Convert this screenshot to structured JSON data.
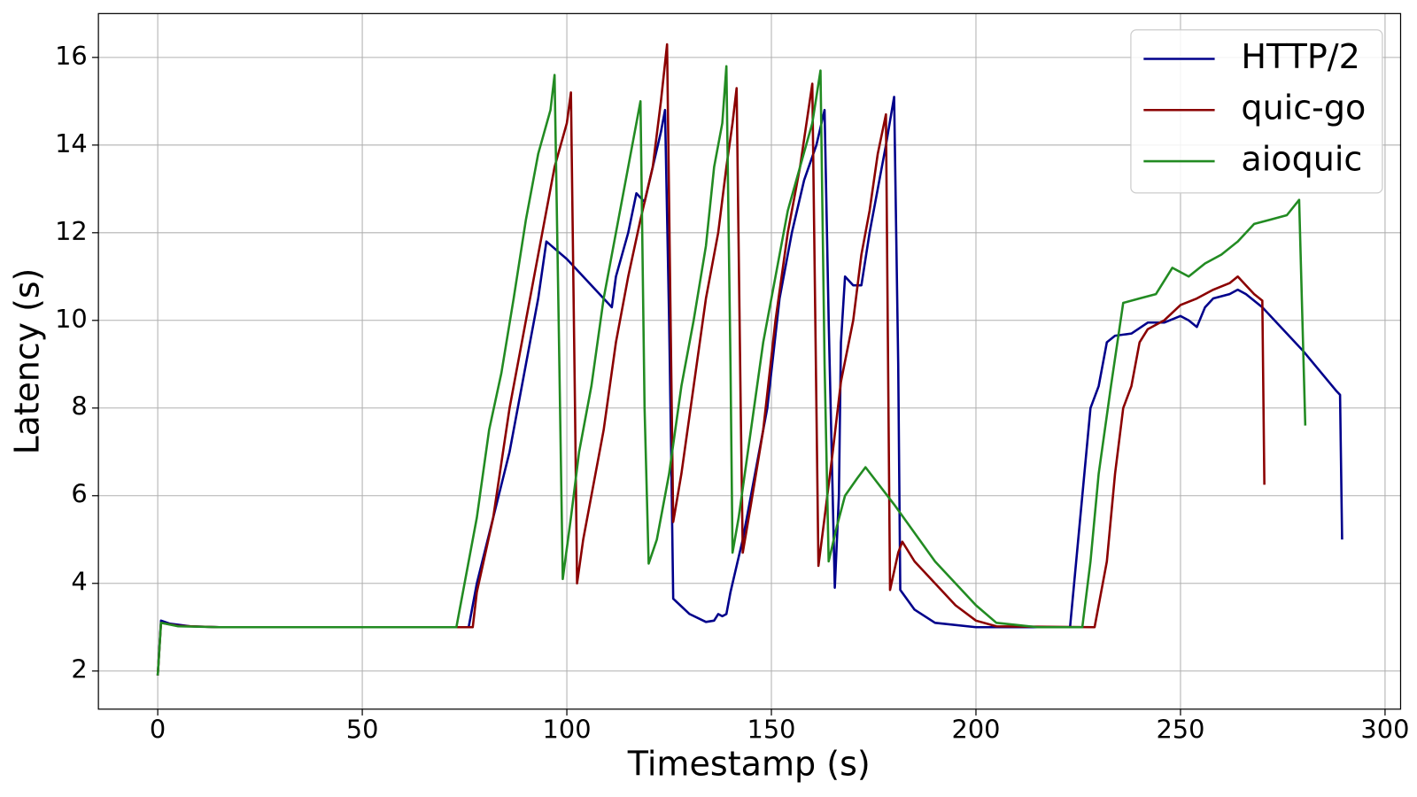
{
  "chart_data": {
    "type": "line",
    "xlabel": "Timestamp (s)",
    "ylabel": "Latency (s)",
    "xlim": [
      -14.5,
      303.8
    ],
    "ylim": [
      1.13,
      17.0
    ],
    "xticks": [
      0,
      50,
      100,
      150,
      200,
      250,
      300
    ],
    "yticks": [
      2,
      4,
      6,
      8,
      10,
      12,
      14,
      16
    ],
    "grid": true,
    "legend": "upper right",
    "series": [
      {
        "name": "HTTP/2",
        "color": "#00008b",
        "x": [
          0,
          0.8,
          3,
          8,
          15,
          50,
          76,
          78,
          82,
          86,
          90,
          93,
          95,
          100,
          105,
          111,
          112,
          115,
          117,
          119,
          121,
          123,
          124,
          125,
          125.5,
          126,
          130,
          134,
          136,
          137,
          138,
          139,
          140,
          143,
          146,
          149,
          152,
          155,
          158,
          161,
          163,
          164,
          165.5,
          166.5,
          167,
          168,
          170,
          172,
          174,
          176,
          178,
          180,
          181,
          181.5,
          185,
          190,
          200,
          223,
          224,
          226,
          228,
          230,
          232,
          234,
          238,
          242,
          246,
          250,
          252,
          254,
          256,
          258,
          262,
          264,
          266,
          270,
          280,
          288,
          289,
          289.5
        ],
        "values": [
          1.9,
          3.15,
          3.08,
          3.02,
          3.0,
          3.0,
          3.0,
          4.0,
          5.5,
          7.0,
          9.0,
          10.5,
          11.8,
          11.4,
          10.9,
          10.3,
          11.0,
          12.0,
          12.9,
          12.7,
          13.5,
          14.3,
          14.8,
          10.0,
          7.0,
          3.65,
          3.3,
          3.12,
          3.15,
          3.3,
          3.25,
          3.3,
          3.8,
          5.0,
          6.5,
          8.0,
          10.5,
          12.0,
          13.2,
          14.0,
          14.8,
          10.0,
          3.9,
          6.0,
          9.5,
          11.0,
          10.8,
          10.8,
          12.0,
          13.0,
          14.0,
          15.1,
          9.0,
          3.85,
          3.4,
          3.1,
          3.0,
          3.0,
          4.0,
          6.0,
          8.0,
          8.5,
          9.5,
          9.65,
          9.7,
          9.95,
          9.95,
          10.1,
          10.0,
          9.85,
          10.3,
          10.5,
          10.6,
          10.7,
          10.6,
          10.3,
          9.3,
          8.4,
          8.3,
          5.0
        ]
      },
      {
        "name": "quic-go",
        "color": "#8b0000",
        "x": [
          0,
          0.8,
          5,
          15,
          77,
          78,
          82,
          86,
          90,
          94,
          97,
          100,
          101,
          102,
          102.5,
          104,
          106,
          109,
          112,
          115,
          118,
          121,
          123,
          124.5,
          125.5,
          126,
          128,
          131,
          134,
          137,
          139,
          140.5,
          141.5,
          142.5,
          143,
          145,
          148,
          151,
          154,
          157,
          160,
          161.5,
          163,
          165,
          167,
          170,
          172,
          174,
          176,
          178,
          179,
          181,
          182,
          185,
          190,
          195,
          200,
          205,
          229,
          230,
          232,
          234,
          236,
          238,
          240,
          242,
          246,
          250,
          254,
          258,
          262,
          264,
          266,
          268,
          270,
          270.5
        ],
        "values": [
          1.9,
          3.1,
          3.03,
          3.0,
          3.0,
          3.8,
          5.5,
          8.0,
          10.0,
          12.0,
          13.5,
          14.5,
          15.2,
          8.0,
          4.0,
          5.0,
          6.0,
          7.5,
          9.5,
          11.0,
          12.3,
          13.5,
          15.0,
          16.3,
          9.0,
          5.4,
          6.5,
          8.5,
          10.5,
          12.0,
          13.5,
          14.5,
          15.3,
          8.0,
          4.7,
          5.8,
          7.5,
          10.0,
          12.0,
          13.5,
          15.4,
          4.4,
          5.5,
          7.0,
          8.6,
          10.0,
          11.5,
          12.5,
          13.8,
          14.7,
          3.85,
          4.7,
          4.95,
          4.5,
          4.0,
          3.5,
          3.15,
          3.02,
          3.0,
          3.5,
          4.5,
          6.5,
          8.0,
          8.5,
          9.5,
          9.8,
          10.0,
          10.35,
          10.5,
          10.7,
          10.85,
          11.0,
          10.8,
          10.6,
          10.45,
          6.25
        ]
      },
      {
        "name": "aioquic",
        "color": "#228b22",
        "x": [
          0,
          0.8,
          5,
          15,
          73,
          75,
          78,
          81,
          84,
          87,
          90,
          93,
          96,
          97,
          98,
          99,
          101,
          103,
          106,
          109,
          112,
          115,
          118,
          119,
          120,
          122,
          125,
          128,
          131,
          134,
          136,
          138,
          139,
          140,
          140.5,
          142,
          145,
          148,
          151,
          154,
          157,
          160,
          162,
          163,
          164,
          166,
          168,
          171,
          173,
          180,
          190,
          200,
          205,
          215,
          226,
          228,
          230,
          233,
          236,
          240,
          244,
          248,
          252,
          256,
          260,
          264,
          268,
          272,
          276,
          279,
          280.5
        ],
        "values": [
          1.9,
          3.1,
          3.02,
          3.0,
          3.0,
          4.0,
          5.5,
          7.5,
          8.8,
          10.5,
          12.3,
          13.8,
          14.8,
          15.6,
          10.0,
          4.1,
          5.5,
          7.0,
          8.5,
          10.5,
          12.0,
          13.5,
          15.0,
          8.0,
          4.45,
          5.0,
          6.5,
          8.5,
          10.0,
          11.7,
          13.5,
          14.5,
          15.8,
          9.0,
          4.7,
          5.5,
          7.5,
          9.5,
          11.0,
          12.5,
          13.5,
          14.5,
          15.7,
          9.0,
          4.5,
          5.3,
          6.0,
          6.4,
          6.65,
          5.8,
          4.5,
          3.5,
          3.1,
          3.0,
          3.0,
          4.5,
          6.5,
          8.5,
          10.4,
          10.5,
          10.6,
          11.2,
          11.0,
          11.3,
          11.5,
          11.8,
          12.2,
          12.3,
          12.4,
          12.75,
          7.6
        ]
      }
    ]
  }
}
